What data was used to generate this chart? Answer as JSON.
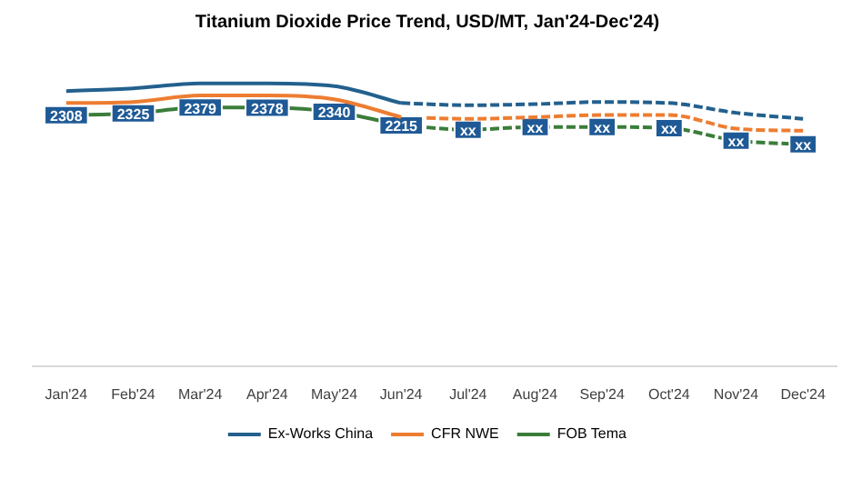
{
  "chart_data": {
    "type": "line",
    "title": "Titanium Dioxide Price Trend, USD/MT, Jan'24-Dec'24)",
    "categories": [
      "Jan'24",
      "Feb'24",
      "Mar'24",
      "Apr'24",
      "May'24",
      "Jun'24",
      "Jul'24",
      "Aug'24",
      "Sep'24",
      "Oct'24",
      "Nov'24",
      "Dec'24"
    ],
    "series": [
      {
        "name": "Ex-Works China",
        "color": "#23608e",
        "line_style": "solid",
        "x": [
          "Jan'24",
          "Feb'24",
          "Mar'24",
          "Apr'24",
          "May'24",
          "Jun'24"
        ],
        "values": [
          2530,
          2555,
          2600,
          2600,
          2575,
          2420
        ]
      },
      {
        "name": "CFR NWE",
        "color": "#ed7d31",
        "line_style": "solid",
        "x": [
          "Jan'24",
          "Feb'24",
          "Mar'24",
          "Apr'24",
          "May'24",
          "Jun'24"
        ],
        "values": [
          2420,
          2430,
          2490,
          2490,
          2455,
          2290
        ]
      },
      {
        "name": "FOB Tema",
        "color": "#3a7d3a",
        "line_style": "solid",
        "x": [
          "Jan'24",
          "Feb'24",
          "Mar'24",
          "Apr'24",
          "May'24",
          "Jun'24"
        ],
        "values": [
          2308,
          2325,
          2379,
          2378,
          2340,
          2215
        ],
        "marker": "square",
        "value_labels": [
          "2308",
          "2325",
          "2379",
          "2378",
          "2340",
          "2215"
        ]
      },
      {
        "color": "#23608e",
        "line_style": "dashed",
        "x": [
          "Jun'24",
          "Jul'24",
          "Aug'24",
          "Sep'24",
          "Oct'24",
          "Nov'24",
          "Dec'24"
        ],
        "values": [
          2420,
          2400,
          2410,
          2430,
          2420,
          2330,
          2275
        ]
      },
      {
        "color": "#ed7d31",
        "line_style": "dashed",
        "x": [
          "Jun'24",
          "Jul'24",
          "Aug'24",
          "Sep'24",
          "Oct'24",
          "Nov'24",
          "Dec'24"
        ],
        "values": [
          2290,
          2275,
          2290,
          2310,
          2310,
          2185,
          2165
        ]
      },
      {
        "color": "#3a7d3a",
        "line_style": "dashed",
        "x": [
          "Jun'24",
          "Jul'24",
          "Aug'24",
          "Sep'24",
          "Oct'24",
          "Nov'24",
          "Dec'24"
        ],
        "values": [
          2215,
          2175,
          2200,
          2200,
          2190,
          2075,
          2040
        ],
        "marker": "square",
        "value_labels": [
          null,
          "xx",
          "xx",
          "xx",
          "xx",
          "xx",
          "xx"
        ]
      }
    ],
    "tick_labels": "x",
    "grid": false,
    "legend": "bottom"
  }
}
